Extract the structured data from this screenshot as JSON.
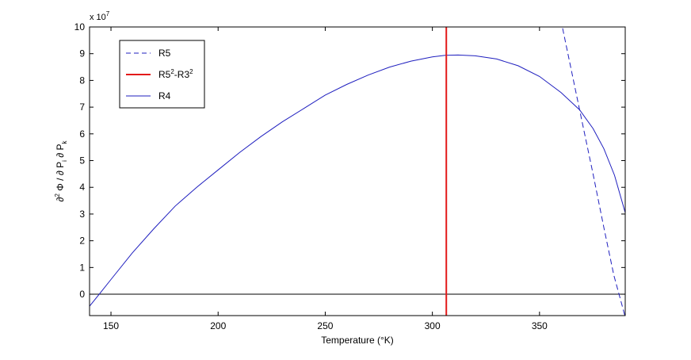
{
  "chart_data": {
    "type": "line",
    "title": "",
    "xlabel": "Temperature (°K)",
    "ylabel_parts": {
      "partial": "∂",
      "sup2": "2",
      "phi": " Φ / ∂ P",
      "sub_i": "i",
      "mid": " ∂ P",
      "sub_k": "k"
    },
    "xlim": [
      140,
      390
    ],
    "ylim": [
      -0.8,
      10
    ],
    "y_exponent": {
      "base": "x 10",
      "power": "7"
    },
    "x_ticks": [
      150,
      200,
      250,
      300,
      350
    ],
    "x_tick_labels": [
      "150",
      "200",
      "250",
      "300",
      "350"
    ],
    "y_ticks": [
      0,
      1,
      2,
      3,
      4,
      5,
      6,
      7,
      8,
      9,
      10
    ],
    "y_tick_labels": [
      "0",
      "1",
      "2",
      "3",
      "4",
      "5",
      "6",
      "7",
      "8",
      "9",
      "10"
    ],
    "zero_line": 0,
    "series": [
      {
        "name": "R5",
        "style": "dashed",
        "color": "#1f1fbf",
        "x": [
          360.8,
          368.7,
          375.0,
          380.0,
          384.7,
          390.0
        ],
        "y": [
          9.95,
          6.9,
          4.5,
          2.5,
          0.7,
          -0.85
        ]
      },
      {
        "name": "R4",
        "style": "solid",
        "color": "#1f1fbf",
        "x": [
          140,
          145,
          150,
          160,
          170,
          180,
          190,
          200,
          210,
          220,
          230,
          240,
          250,
          260,
          270,
          280,
          290,
          300,
          306,
          312,
          320,
          330,
          340,
          350,
          360,
          368.7,
          375,
          380,
          385,
          390
        ],
        "y": [
          -0.45,
          0.05,
          0.55,
          1.55,
          2.45,
          3.3,
          4.0,
          4.65,
          5.3,
          5.9,
          6.45,
          6.95,
          7.45,
          7.85,
          8.2,
          8.5,
          8.72,
          8.88,
          8.94,
          8.95,
          8.92,
          8.8,
          8.55,
          8.15,
          7.55,
          6.9,
          6.2,
          5.45,
          4.45,
          3.05
        ]
      }
    ],
    "vertical_line": {
      "name": "R5²-R3²",
      "label_base": "R5",
      "label_sup1": "2",
      "label_mid": "-R3",
      "label_sup2": "2",
      "x": 306.5,
      "color": "#e31a1a"
    },
    "legend": {
      "placement": "top-left",
      "entries": [
        "R5",
        "R5²-R3²",
        "R4"
      ]
    },
    "grid": false
  }
}
